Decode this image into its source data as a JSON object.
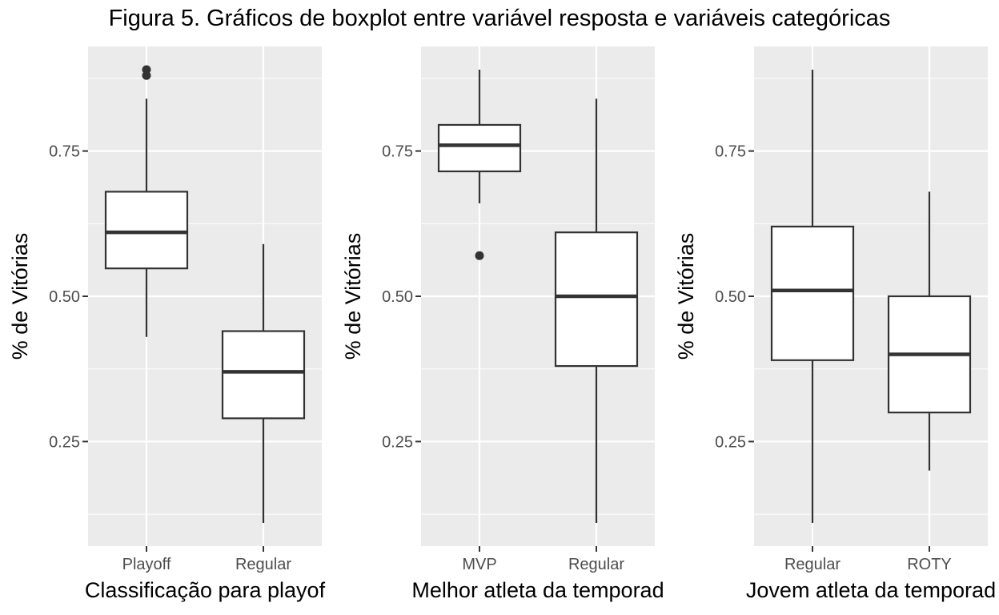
{
  "title": "Figura 5. Gráficos de boxplot entre variável resposta e variáveis categóricas",
  "colors": {
    "panel_bg": "#ebebeb",
    "grid_major": "#ffffff",
    "box_fill": "#ffffff",
    "box_stroke": "#333333",
    "tick_label": "#4d4d4d"
  },
  "chart_data": [
    {
      "type": "boxplot",
      "xlabel": "Classificação para playof",
      "ylabel": "% de Vitórias",
      "ylim": [
        0.07,
        0.93
      ],
      "y_ticks": [
        0.25,
        0.5,
        0.75
      ],
      "y_tick_labels": [
        "0.25",
        "0.50",
        "0.75"
      ],
      "grid": true,
      "categories": [
        "Playoff",
        "Regular"
      ],
      "boxes": [
        {
          "category": "Playoff",
          "whisker_low": 0.43,
          "q1": 0.548,
          "median": 0.61,
          "q3": 0.68,
          "whisker_high": 0.84,
          "outliers": [
            0.88,
            0.89
          ]
        },
        {
          "category": "Regular",
          "whisker_low": 0.11,
          "q1": 0.29,
          "median": 0.37,
          "q3": 0.44,
          "whisker_high": 0.59,
          "outliers": []
        }
      ]
    },
    {
      "type": "boxplot",
      "xlabel": "Melhor atleta da temporad",
      "ylabel": "% de Vitórias",
      "ylim": [
        0.07,
        0.93
      ],
      "y_ticks": [
        0.25,
        0.5,
        0.75
      ],
      "y_tick_labels": [
        "0.25",
        "0.50",
        "0.75"
      ],
      "grid": true,
      "categories": [
        "MVP",
        "Regular"
      ],
      "boxes": [
        {
          "category": "MVP",
          "whisker_low": 0.66,
          "q1": 0.715,
          "median": 0.76,
          "q3": 0.795,
          "whisker_high": 0.89,
          "outliers": [
            0.57
          ]
        },
        {
          "category": "Regular",
          "whisker_low": 0.11,
          "q1": 0.38,
          "median": 0.5,
          "q3": 0.61,
          "whisker_high": 0.84,
          "outliers": []
        }
      ]
    },
    {
      "type": "boxplot",
      "xlabel": "Jovem atleta da temporad",
      "ylabel": "% de Vitórias",
      "ylim": [
        0.07,
        0.93
      ],
      "y_ticks": [
        0.25,
        0.5,
        0.75
      ],
      "y_tick_labels": [
        "0.25",
        "0.50",
        "0.75"
      ],
      "grid": true,
      "categories": [
        "Regular",
        "ROTY"
      ],
      "boxes": [
        {
          "category": "Regular",
          "whisker_low": 0.11,
          "q1": 0.39,
          "median": 0.51,
          "q3": 0.62,
          "whisker_high": 0.89,
          "outliers": []
        },
        {
          "category": "ROTY",
          "whisker_low": 0.2,
          "q1": 0.3,
          "median": 0.4,
          "q3": 0.5,
          "whisker_high": 0.68,
          "outliers": []
        }
      ]
    }
  ]
}
